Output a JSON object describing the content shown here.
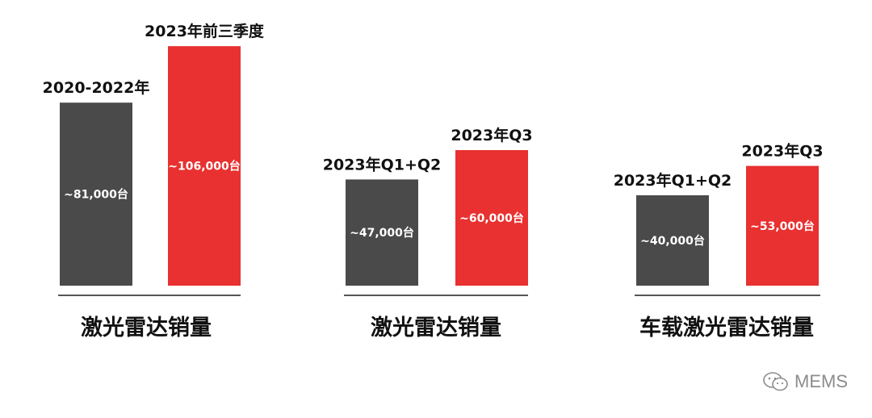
{
  "chart_data": [
    {
      "type": "bar",
      "title": "激光雷达销量",
      "categories": [
        "2020-2022年",
        "2023年前三季度"
      ],
      "values": [
        81000,
        106000
      ],
      "value_labels": [
        "~81,000台",
        "~106,000台"
      ],
      "colors": [
        "#4a4a4a",
        "#e83130"
      ]
    },
    {
      "type": "bar",
      "title": "激光雷达销量",
      "categories": [
        "2023年Q1+Q2",
        "2023年Q3"
      ],
      "values": [
        47000,
        60000
      ],
      "value_labels": [
        "~47,000台",
        "~60,000台"
      ],
      "colors": [
        "#4a4a4a",
        "#e83130"
      ]
    },
    {
      "type": "bar",
      "title": "车载激光雷达销量",
      "categories": [
        "2023年Q1+Q2",
        "2023年Q3"
      ],
      "values": [
        40000,
        53000
      ],
      "value_labels": [
        "~40,000台",
        "~53,000台"
      ],
      "colors": [
        "#4a4a4a",
        "#e83130"
      ]
    }
  ],
  "watermark": {
    "text": "MEMS",
    "icon": "wechat-icon"
  }
}
